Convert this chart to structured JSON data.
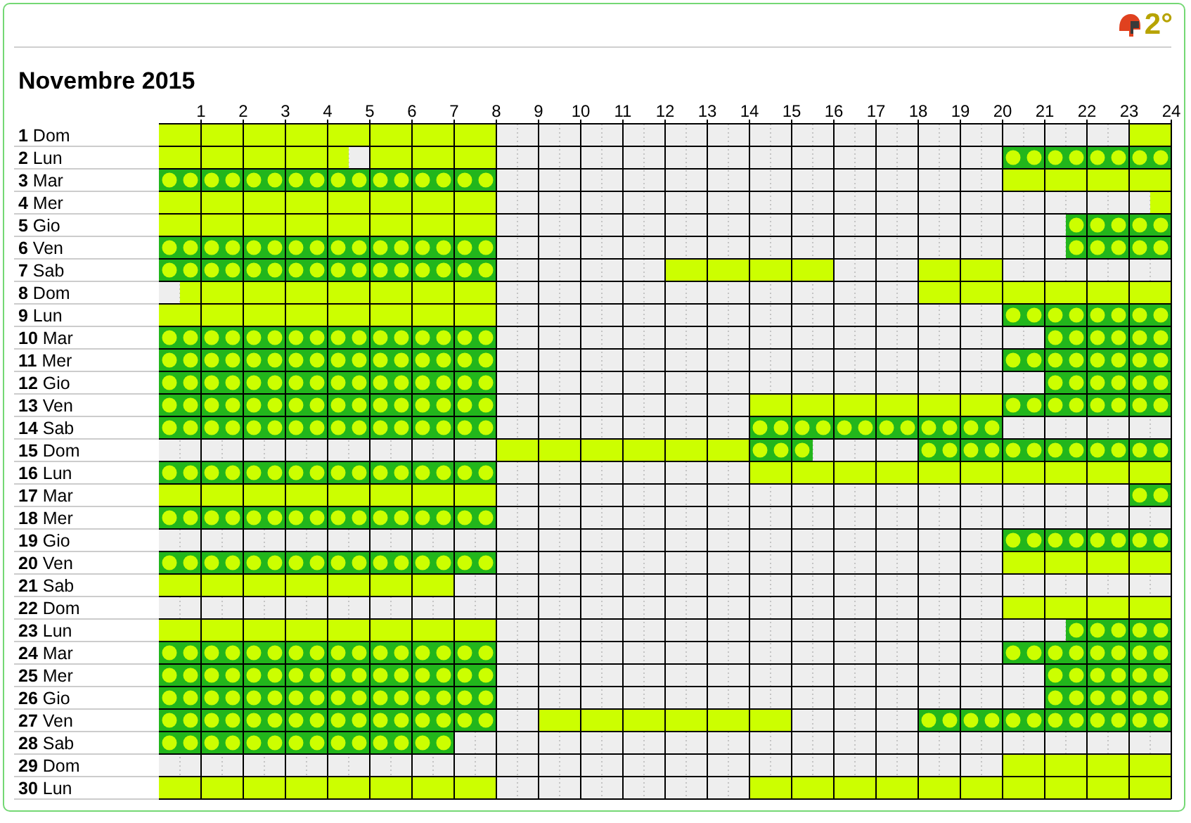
{
  "chart_data": {
    "type": "bar",
    "orientation": "horizontal",
    "title": "Novembre 2015",
    "annotations": [
      "2°"
    ],
    "grid": true,
    "categories": [
      "1 Dom",
      "2 Lun",
      "3 Mar",
      "4 Mer",
      "5 Gio",
      "6 Ven",
      "7 Sab",
      "8 Dom",
      "9 Lun",
      "10 Mar",
      "11 Mer",
      "12 Gio",
      "13 Ven",
      "14 Sab",
      "15 Dom",
      "16 Lun",
      "17 Mar",
      "18 Mer",
      "19 Gio",
      "20 Ven",
      "21 Sab",
      "22 Dom",
      "23 Lun",
      "24 Mar",
      "25 Mer",
      "26 Gio",
      "27 Ven",
      "28 Sab",
      "29 Dom",
      "30 Lun"
    ],
    "xlim": [
      0,
      24
    ],
    "xticks": [
      1,
      2,
      3,
      4,
      5,
      6,
      7,
      8,
      9,
      10,
      11,
      12,
      13,
      14,
      15,
      16,
      17,
      18,
      19,
      20,
      21,
      22,
      23,
      24
    ],
    "series": [
      {
        "color": "#ccff00",
        "base": [
          0,
          0,
          20,
          0,
          0,
          null,
          12,
          0.5,
          0,
          null,
          null,
          null,
          14,
          null,
          8,
          14,
          0,
          null,
          null,
          20,
          0,
          20,
          0,
          null,
          null,
          null,
          9,
          null,
          20,
          0
        ],
        "values": [
          8,
          4.5,
          4,
          8,
          8,
          null,
          4,
          7.5,
          8,
          null,
          null,
          null,
          6,
          null,
          6,
          10,
          8,
          null,
          null,
          4,
          7,
          4,
          8,
          null,
          null,
          null,
          6,
          null,
          4,
          8
        ]
      },
      {
        "color": "#ccff00",
        "base": [
          23,
          5,
          null,
          23.5,
          null,
          null,
          18,
          18,
          null,
          null,
          null,
          null,
          null,
          null,
          null,
          null,
          null,
          null,
          null,
          null,
          null,
          null,
          null,
          null,
          null,
          null,
          null,
          null,
          null,
          14
        ],
        "values": [
          1,
          3,
          null,
          0.5,
          null,
          null,
          2,
          6,
          null,
          null,
          null,
          null,
          null,
          null,
          null,
          null,
          null,
          null,
          null,
          null,
          null,
          null,
          null,
          null,
          null,
          null,
          null,
          null,
          null,
          10
        ]
      },
      {
        "color": "#22b61c",
        "marker": "circle",
        "base": [
          null,
          20,
          0,
          null,
          21.5,
          0,
          0,
          null,
          20,
          0,
          0,
          0,
          0,
          0,
          14,
          0,
          23,
          0,
          20,
          0,
          null,
          null,
          21.5,
          0,
          0,
          0,
          0,
          0,
          null,
          null
        ],
        "values": [
          null,
          4,
          8,
          null,
          2.5,
          8,
          8,
          null,
          4,
          8,
          8,
          8,
          8,
          8,
          1.5,
          8,
          1,
          8,
          4,
          8,
          null,
          null,
          2.5,
          8,
          8,
          8,
          8,
          7,
          null,
          null
        ]
      },
      {
        "color": "#22b61c",
        "marker": "circle",
        "base": [
          null,
          null,
          null,
          null,
          null,
          21.5,
          null,
          null,
          null,
          21,
          20,
          21,
          20,
          14,
          18,
          null,
          null,
          null,
          null,
          null,
          null,
          null,
          null,
          20,
          21,
          21,
          18,
          null,
          null,
          null
        ],
        "values": [
          null,
          null,
          null,
          null,
          null,
          2.5,
          null,
          null,
          null,
          3,
          4,
          3,
          4,
          6,
          6,
          null,
          null,
          null,
          null,
          null,
          null,
          null,
          null,
          4,
          3,
          3,
          6,
          null,
          null,
          null
        ]
      }
    ]
  }
}
